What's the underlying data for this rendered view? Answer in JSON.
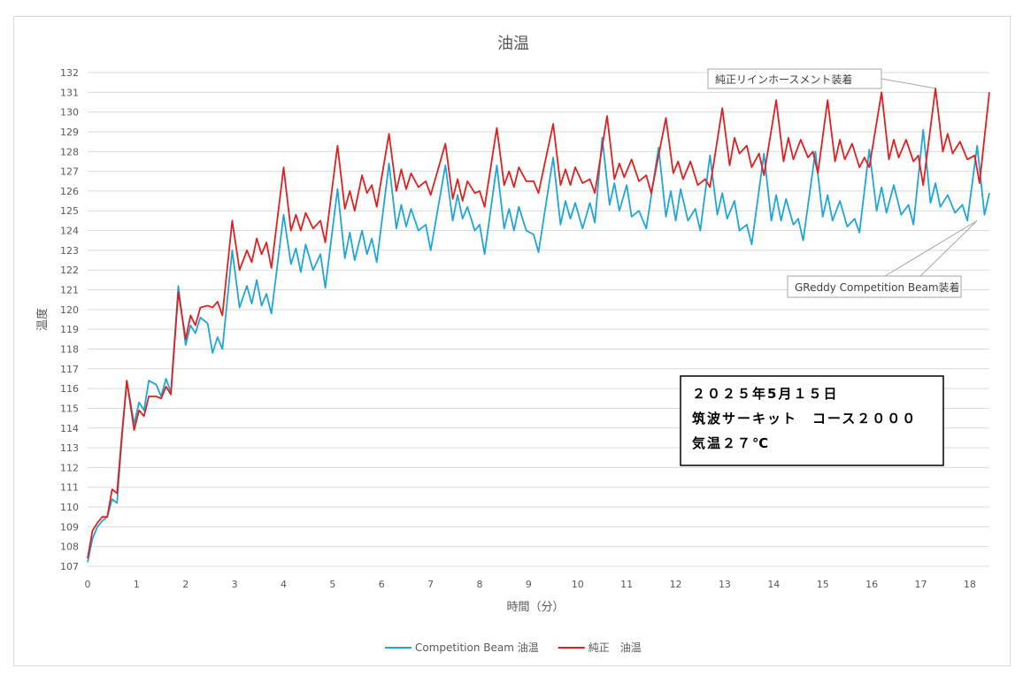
{
  "chart_data": {
    "type": "line",
    "title": "油温",
    "xlabel": "時間（分）",
    "ylabel": "温度",
    "xlim": [
      0,
      18.4
    ],
    "ylim": [
      107,
      132
    ],
    "x_ticks": [
      0,
      1,
      2,
      3,
      4,
      5,
      6,
      7,
      8,
      9,
      10,
      11,
      12,
      13,
      14,
      15,
      16,
      17,
      18
    ],
    "y_ticks": [
      107,
      108,
      109,
      110,
      111,
      112,
      113,
      114,
      115,
      116,
      117,
      118,
      119,
      120,
      121,
      122,
      123,
      124,
      125,
      126,
      127,
      128,
      129,
      130,
      131,
      132
    ],
    "grid": "horizontal",
    "legend_position": "bottom",
    "series": [
      {
        "name": "Competition Beam 油温",
        "color": "#1fa6d9",
        "points": [
          [
            0,
            107.2
          ],
          [
            0.1,
            108.4
          ],
          [
            0.2,
            109.0
          ],
          [
            0.3,
            109.3
          ],
          [
            0.4,
            109.5
          ],
          [
            0.5,
            110.4
          ],
          [
            0.6,
            110.2
          ],
          [
            0.7,
            113.5
          ],
          [
            0.8,
            116.4
          ],
          [
            0.95,
            114.2
          ],
          [
            1.05,
            115.3
          ],
          [
            1.15,
            114.9
          ],
          [
            1.25,
            116.4
          ],
          [
            1.4,
            116.2
          ],
          [
            1.5,
            115.6
          ],
          [
            1.6,
            116.5
          ],
          [
            1.7,
            115.8
          ],
          [
            1.85,
            121.2
          ],
          [
            2.0,
            118.2
          ],
          [
            2.1,
            119.2
          ],
          [
            2.2,
            118.8
          ],
          [
            2.3,
            119.6
          ],
          [
            2.45,
            119.3
          ],
          [
            2.55,
            117.8
          ],
          [
            2.65,
            118.6
          ],
          [
            2.75,
            118.0
          ],
          [
            2.95,
            123.0
          ],
          [
            3.1,
            120.1
          ],
          [
            3.25,
            121.2
          ],
          [
            3.35,
            120.3
          ],
          [
            3.45,
            121.5
          ],
          [
            3.55,
            120.2
          ],
          [
            3.65,
            120.8
          ],
          [
            3.75,
            119.8
          ],
          [
            4.0,
            124.8
          ],
          [
            4.15,
            122.3
          ],
          [
            4.25,
            123.1
          ],
          [
            4.35,
            121.9
          ],
          [
            4.45,
            123.3
          ],
          [
            4.6,
            122.0
          ],
          [
            4.75,
            122.8
          ],
          [
            4.85,
            121.1
          ],
          [
            5.1,
            126.1
          ],
          [
            5.25,
            122.6
          ],
          [
            5.35,
            123.9
          ],
          [
            5.45,
            122.5
          ],
          [
            5.6,
            124.0
          ],
          [
            5.7,
            122.8
          ],
          [
            5.8,
            123.6
          ],
          [
            5.9,
            122.4
          ],
          [
            6.15,
            127.4
          ],
          [
            6.3,
            124.1
          ],
          [
            6.4,
            125.3
          ],
          [
            6.5,
            124.2
          ],
          [
            6.6,
            125.1
          ],
          [
            6.75,
            124.0
          ],
          [
            6.9,
            124.3
          ],
          [
            7.0,
            123.0
          ],
          [
            7.3,
            127.3
          ],
          [
            7.45,
            124.5
          ],
          [
            7.55,
            125.8
          ],
          [
            7.65,
            124.6
          ],
          [
            7.75,
            125.2
          ],
          [
            7.9,
            124.0
          ],
          [
            8.0,
            124.3
          ],
          [
            8.1,
            122.8
          ],
          [
            8.35,
            127.3
          ],
          [
            8.5,
            124.1
          ],
          [
            8.6,
            125.1
          ],
          [
            8.7,
            124.0
          ],
          [
            8.8,
            125.2
          ],
          [
            8.95,
            124.0
          ],
          [
            9.1,
            123.8
          ],
          [
            9.2,
            122.9
          ],
          [
            9.5,
            127.7
          ],
          [
            9.65,
            124.3
          ],
          [
            9.75,
            125.5
          ],
          [
            9.85,
            124.6
          ],
          [
            9.95,
            125.4
          ],
          [
            10.1,
            124.1
          ],
          [
            10.25,
            125.4
          ],
          [
            10.35,
            124.4
          ],
          [
            10.5,
            128.7
          ],
          [
            10.65,
            125.3
          ],
          [
            10.75,
            126.4
          ],
          [
            10.85,
            125.0
          ],
          [
            11.0,
            126.3
          ],
          [
            11.1,
            124.7
          ],
          [
            11.25,
            125.0
          ],
          [
            11.4,
            124.1
          ],
          [
            11.65,
            128.2
          ],
          [
            11.8,
            124.7
          ],
          [
            11.9,
            126.0
          ],
          [
            12.0,
            124.5
          ],
          [
            12.1,
            126.1
          ],
          [
            12.25,
            124.5
          ],
          [
            12.4,
            125.1
          ],
          [
            12.5,
            124.0
          ],
          [
            12.7,
            127.8
          ],
          [
            12.85,
            124.8
          ],
          [
            12.95,
            125.9
          ],
          [
            13.05,
            124.6
          ],
          [
            13.2,
            125.5
          ],
          [
            13.3,
            124.0
          ],
          [
            13.45,
            124.3
          ],
          [
            13.55,
            123.3
          ],
          [
            13.8,
            127.9
          ],
          [
            13.95,
            124.5
          ],
          [
            14.05,
            125.8
          ],
          [
            14.15,
            124.5
          ],
          [
            14.25,
            125.6
          ],
          [
            14.4,
            124.3
          ],
          [
            14.5,
            124.6
          ],
          [
            14.6,
            123.5
          ],
          [
            14.85,
            128.0
          ],
          [
            15.0,
            124.7
          ],
          [
            15.1,
            125.8
          ],
          [
            15.2,
            124.5
          ],
          [
            15.35,
            125.5
          ],
          [
            15.5,
            124.2
          ],
          [
            15.65,
            124.6
          ],
          [
            15.75,
            123.9
          ],
          [
            15.95,
            128.1
          ],
          [
            16.1,
            125.0
          ],
          [
            16.2,
            126.2
          ],
          [
            16.3,
            124.9
          ],
          [
            16.45,
            126.3
          ],
          [
            16.6,
            124.8
          ],
          [
            16.75,
            125.3
          ],
          [
            16.85,
            124.3
          ],
          [
            17.05,
            129.1
          ],
          [
            17.2,
            125.4
          ],
          [
            17.3,
            126.4
          ],
          [
            17.4,
            125.2
          ],
          [
            17.55,
            125.8
          ],
          [
            17.7,
            124.9
          ],
          [
            17.85,
            125.3
          ],
          [
            17.95,
            124.5
          ],
          [
            18.15,
            128.3
          ],
          [
            18.3,
            124.8
          ],
          [
            18.4,
            125.9
          ]
        ]
      },
      {
        "name": "純正　油温",
        "color": "#e02020",
        "points": [
          [
            0,
            107.4
          ],
          [
            0.1,
            108.8
          ],
          [
            0.2,
            109.2
          ],
          [
            0.3,
            109.5
          ],
          [
            0.4,
            109.5
          ],
          [
            0.5,
            110.9
          ],
          [
            0.6,
            110.7
          ],
          [
            0.7,
            113.7
          ],
          [
            0.8,
            116.4
          ],
          [
            0.95,
            113.9
          ],
          [
            1.05,
            114.9
          ],
          [
            1.15,
            114.6
          ],
          [
            1.25,
            115.6
          ],
          [
            1.4,
            115.6
          ],
          [
            1.5,
            115.5
          ],
          [
            1.6,
            116.1
          ],
          [
            1.7,
            115.7
          ],
          [
            1.85,
            120.9
          ],
          [
            2.0,
            118.5
          ],
          [
            2.1,
            119.7
          ],
          [
            2.2,
            119.2
          ],
          [
            2.3,
            120.1
          ],
          [
            2.45,
            120.2
          ],
          [
            2.55,
            120.1
          ],
          [
            2.65,
            120.4
          ],
          [
            2.75,
            119.7
          ],
          [
            2.95,
            124.5
          ],
          [
            3.1,
            122.0
          ],
          [
            3.25,
            123.0
          ],
          [
            3.35,
            122.4
          ],
          [
            3.45,
            123.6
          ],
          [
            3.55,
            122.8
          ],
          [
            3.65,
            123.4
          ],
          [
            3.75,
            122.1
          ],
          [
            4.0,
            127.2
          ],
          [
            4.15,
            124.0
          ],
          [
            4.25,
            124.8
          ],
          [
            4.35,
            124.0
          ],
          [
            4.45,
            124.9
          ],
          [
            4.6,
            124.1
          ],
          [
            4.75,
            124.5
          ],
          [
            4.85,
            123.4
          ],
          [
            5.1,
            128.3
          ],
          [
            5.25,
            125.1
          ],
          [
            5.35,
            126.0
          ],
          [
            5.45,
            125.0
          ],
          [
            5.6,
            126.8
          ],
          [
            5.7,
            125.9
          ],
          [
            5.8,
            126.3
          ],
          [
            5.9,
            125.2
          ],
          [
            6.15,
            128.9
          ],
          [
            6.3,
            126.0
          ],
          [
            6.4,
            127.1
          ],
          [
            6.5,
            126.1
          ],
          [
            6.6,
            126.9
          ],
          [
            6.75,
            126.2
          ],
          [
            6.9,
            126.5
          ],
          [
            7.0,
            125.8
          ],
          [
            7.3,
            128.4
          ],
          [
            7.45,
            125.6
          ],
          [
            7.55,
            126.6
          ],
          [
            7.65,
            125.5
          ],
          [
            7.75,
            126.5
          ],
          [
            7.9,
            125.9
          ],
          [
            8.0,
            126.0
          ],
          [
            8.1,
            125.2
          ],
          [
            8.35,
            129.2
          ],
          [
            8.5,
            126.3
          ],
          [
            8.6,
            127.0
          ],
          [
            8.7,
            126.2
          ],
          [
            8.8,
            127.2
          ],
          [
            8.95,
            126.5
          ],
          [
            9.1,
            126.5
          ],
          [
            9.2,
            125.9
          ],
          [
            9.5,
            129.4
          ],
          [
            9.65,
            126.3
          ],
          [
            9.75,
            127.1
          ],
          [
            9.85,
            126.3
          ],
          [
            9.95,
            127.2
          ],
          [
            10.1,
            126.4
          ],
          [
            10.25,
            126.6
          ],
          [
            10.35,
            125.9
          ],
          [
            10.6,
            129.8
          ],
          [
            10.75,
            126.6
          ],
          [
            10.85,
            127.4
          ],
          [
            10.95,
            126.7
          ],
          [
            11.1,
            127.6
          ],
          [
            11.25,
            126.5
          ],
          [
            11.4,
            126.8
          ],
          [
            11.5,
            125.9
          ],
          [
            11.8,
            129.7
          ],
          [
            11.95,
            126.9
          ],
          [
            12.05,
            127.5
          ],
          [
            12.15,
            126.6
          ],
          [
            12.3,
            127.5
          ],
          [
            12.45,
            126.3
          ],
          [
            12.6,
            126.6
          ],
          [
            12.7,
            126.2
          ],
          [
            12.95,
            130.2
          ],
          [
            13.1,
            127.3
          ],
          [
            13.2,
            128.7
          ],
          [
            13.3,
            127.9
          ],
          [
            13.45,
            128.3
          ],
          [
            13.55,
            127.2
          ],
          [
            13.7,
            127.9
          ],
          [
            13.8,
            126.8
          ],
          [
            14.05,
            130.6
          ],
          [
            14.2,
            127.5
          ],
          [
            14.3,
            128.7
          ],
          [
            14.4,
            127.6
          ],
          [
            14.55,
            128.6
          ],
          [
            14.7,
            127.7
          ],
          [
            14.8,
            128.0
          ],
          [
            14.9,
            126.9
          ],
          [
            15.1,
            130.6
          ],
          [
            15.25,
            127.5
          ],
          [
            15.35,
            128.6
          ],
          [
            15.45,
            127.6
          ],
          [
            15.6,
            128.4
          ],
          [
            15.75,
            127.2
          ],
          [
            15.85,
            127.7
          ],
          [
            15.95,
            127.2
          ],
          [
            16.2,
            131.0
          ],
          [
            16.35,
            127.6
          ],
          [
            16.45,
            128.6
          ],
          [
            16.55,
            127.7
          ],
          [
            16.7,
            128.6
          ],
          [
            16.85,
            127.5
          ],
          [
            16.95,
            127.8
          ],
          [
            17.05,
            126.3
          ],
          [
            17.3,
            131.2
          ],
          [
            17.45,
            128.0
          ],
          [
            17.55,
            128.9
          ],
          [
            17.65,
            127.9
          ],
          [
            17.8,
            128.5
          ],
          [
            17.95,
            127.6
          ],
          [
            18.1,
            127.8
          ],
          [
            18.2,
            126.4
          ],
          [
            18.4,
            131.0
          ]
        ]
      }
    ],
    "annotations": [
      {
        "text": "純正リインホースメント装着",
        "target": [
          17.3,
          131.2
        ]
      },
      {
        "text": "GReddy Competition Beam装着",
        "target": [
          18.15,
          124.5
        ]
      }
    ],
    "info_box": {
      "lines": [
        "２０２５年5月１５日",
        "筑波サーキット　コース２０００",
        "気温２７℃"
      ]
    }
  }
}
